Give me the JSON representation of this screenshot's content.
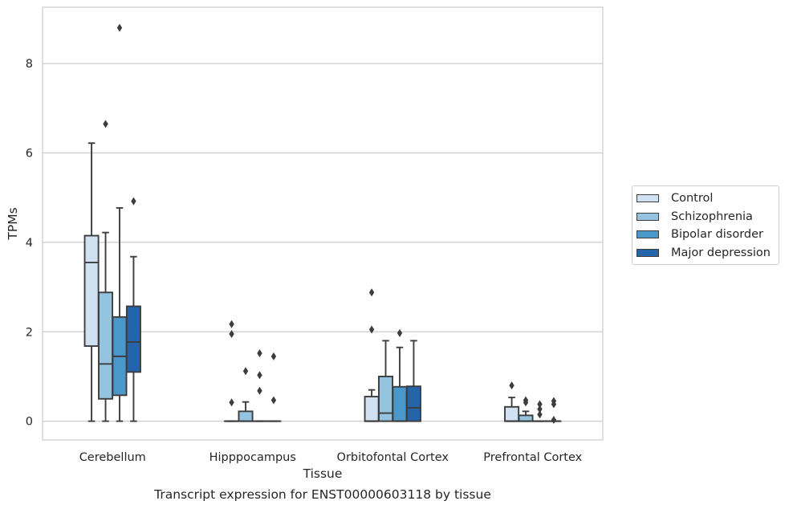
{
  "chart_data": {
    "type": "box",
    "title": "Transcript expression for ENST00000603118 by tissue",
    "xlabel": "Tissue",
    "ylabel": "TPMs",
    "ylim": [
      -0.42,
      9.26
    ],
    "yticks": [
      0,
      2,
      4,
      6,
      8
    ],
    "grid": "horizontal",
    "legend_position": "right",
    "categories": [
      "Cerebellum",
      "Hipppocampus",
      "Orbitofontal Cortex",
      "Prefrontal Cortex"
    ],
    "series": [
      {
        "name": "Control",
        "color": "#d0e1f2",
        "boxes": [
          {
            "whislo": 0,
            "q1": 1.68,
            "med": 3.55,
            "q3": 4.15,
            "whishi": 6.22,
            "fliers": []
          },
          {
            "whislo": 0,
            "q1": 0,
            "med": 0,
            "q3": 0,
            "whishi": 0,
            "fliers": [
              0.42,
              1.95,
              2.17
            ]
          },
          {
            "whislo": 0,
            "q1": 0,
            "med": 0,
            "q3": 0.55,
            "whishi": 0.7,
            "fliers": [
              2.05,
              2.88
            ]
          },
          {
            "whislo": 0,
            "q1": 0,
            "med": 0,
            "q3": 0.32,
            "whishi": 0.53,
            "fliers": [
              0.8
            ]
          }
        ]
      },
      {
        "name": "Schizophrenia",
        "color": "#94c4df",
        "boxes": [
          {
            "whislo": 0,
            "q1": 0.5,
            "med": 1.28,
            "q3": 2.88,
            "whishi": 4.22,
            "fliers": [
              6.65
            ]
          },
          {
            "whislo": 0,
            "q1": 0,
            "med": 0,
            "q3": 0.22,
            "whishi": 0.43,
            "fliers": [
              1.12
            ]
          },
          {
            "whislo": 0,
            "q1": 0,
            "med": 0.18,
            "q3": 1.0,
            "whishi": 1.8,
            "fliers": []
          },
          {
            "whislo": 0,
            "q1": 0,
            "med": 0,
            "q3": 0.13,
            "whishi": 0.22,
            "fliers": [
              0.42,
              0.47
            ]
          }
        ]
      },
      {
        "name": "Bipolar disorder",
        "color": "#4a98c9",
        "boxes": [
          {
            "whislo": 0,
            "q1": 0.58,
            "med": 1.45,
            "q3": 2.33,
            "whishi": 4.77,
            "fliers": [
              8.8
            ]
          },
          {
            "whislo": 0,
            "q1": 0,
            "med": 0,
            "q3": 0,
            "whishi": 0,
            "fliers": [
              0.68,
              1.03,
              1.52
            ]
          },
          {
            "whislo": 0,
            "q1": 0,
            "med": 0,
            "q3": 0.77,
            "whishi": 1.65,
            "fliers": [
              1.97
            ]
          },
          {
            "whislo": 0,
            "q1": 0,
            "med": 0,
            "q3": 0,
            "whishi": 0,
            "fliers": [
              0.15,
              0.27,
              0.38
            ]
          }
        ]
      },
      {
        "name": "Major depression",
        "color": "#2464ab",
        "boxes": [
          {
            "whislo": 0,
            "q1": 1.1,
            "med": 1.77,
            "q3": 2.57,
            "whishi": 3.68,
            "fliers": [
              4.92
            ]
          },
          {
            "whislo": 0,
            "q1": 0,
            "med": 0,
            "q3": 0,
            "whishi": 0,
            "fliers": [
              0.47,
              1.45
            ]
          },
          {
            "whislo": 0,
            "q1": 0,
            "med": 0.3,
            "q3": 0.78,
            "whishi": 1.8,
            "fliers": []
          },
          {
            "whislo": 0,
            "q1": 0,
            "med": 0,
            "q3": 0,
            "whishi": 0,
            "fliers": [
              0.03,
              0.38,
              0.45
            ]
          }
        ]
      }
    ]
  }
}
